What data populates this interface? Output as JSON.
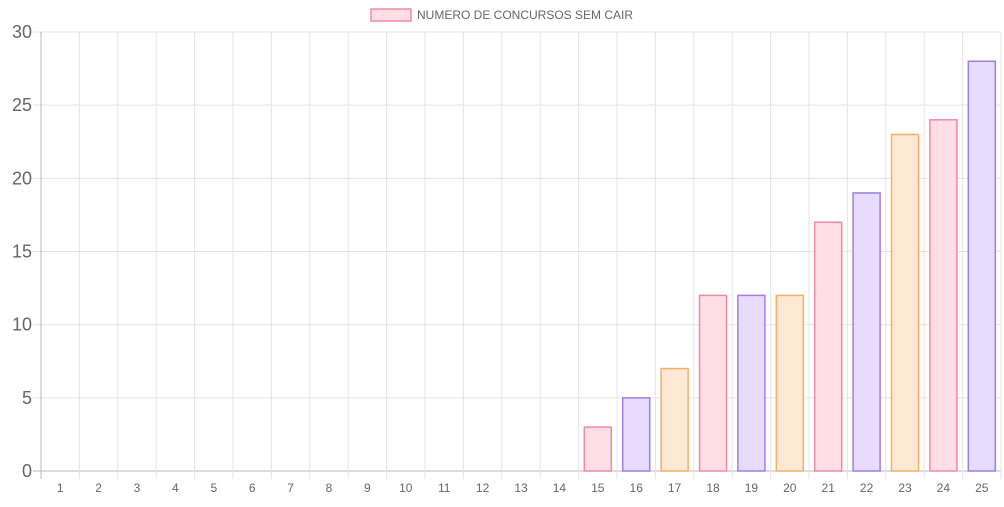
{
  "chart_data": {
    "type": "bar",
    "legend": {
      "label": "NUMERO DE CONCURSOS SEM CAIR",
      "position": "top",
      "fill": "#ffdfe5",
      "stroke": "#f08ca2"
    },
    "categories": [
      "1",
      "2",
      "3",
      "4",
      "5",
      "6",
      "7",
      "8",
      "9",
      "10",
      "11",
      "12",
      "13",
      "14",
      "15",
      "16",
      "17",
      "18",
      "19",
      "20",
      "21",
      "22",
      "23",
      "24",
      "25"
    ],
    "series": [
      {
        "name": "NUMERO DE CONCURSOS SEM CAIR",
        "values": [
          0,
          0,
          0,
          0,
          0,
          0,
          0,
          0,
          0,
          0,
          0,
          0,
          0,
          0,
          3,
          5,
          7,
          12,
          12,
          12,
          17,
          19,
          23,
          24,
          28
        ]
      }
    ],
    "ylim": [
      0,
      30
    ],
    "yticks": [
      "0",
      "5",
      "10",
      "15",
      "20",
      "25",
      "30"
    ],
    "grid": true,
    "palette": [
      {
        "fill": "#e8dcfd",
        "stroke": "#a07ee0"
      },
      {
        "fill": "#ffe9d4",
        "stroke": "#f2b066"
      },
      {
        "fill": "#ffdfe5",
        "stroke": "#ee8aa2"
      }
    ]
  }
}
